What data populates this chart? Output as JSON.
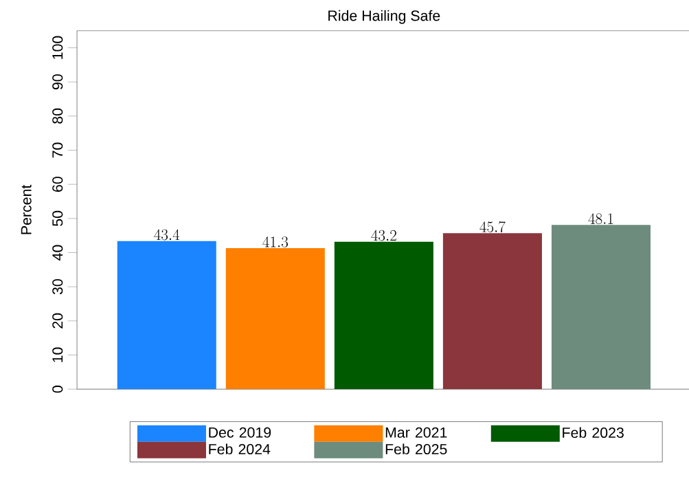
{
  "chart_data": {
    "type": "bar",
    "title": "Ride Hailing Safe",
    "ylabel": "Percent",
    "categories": [
      null
    ],
    "series": [
      {
        "name": "Dec 2019",
        "color": "#1a85ff",
        "values": [
          43.4
        ]
      },
      {
        "name": "Mar 2021",
        "color": "#ff7f00",
        "values": [
          41.3
        ]
      },
      {
        "name": "Feb 2023",
        "color": "#005a00",
        "values": [
          43.2
        ]
      },
      {
        "name": "Feb 2024",
        "color": "#8b363c",
        "values": [
          45.7
        ]
      },
      {
        "name": "Feb 2025",
        "color": "#6d8c7e",
        "values": [
          48.1
        ]
      }
    ],
    "ylim": [
      0,
      105
    ],
    "yticks": [
      0,
      10,
      20,
      30,
      40,
      50,
      60,
      70,
      80,
      90,
      100
    ],
    "data_labels": true,
    "legend": "bottom",
    "grid": false
  }
}
